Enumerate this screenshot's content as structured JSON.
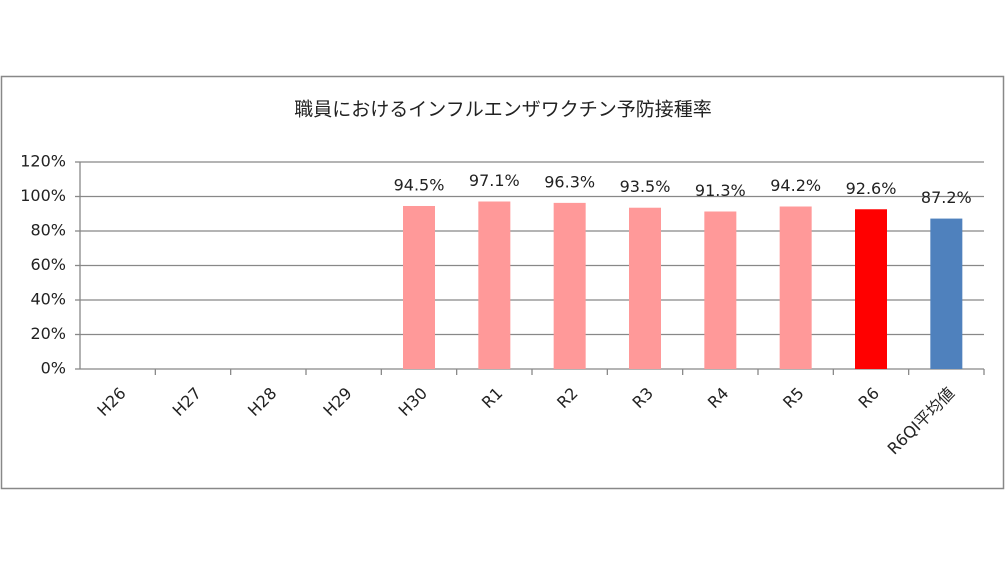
{
  "chart_data": {
    "type": "bar",
    "title": "職員におけるインフルエンザワクチン予防接種率",
    "categories": [
      "H26",
      "H27",
      "H28",
      "H29",
      "H30",
      "R1",
      "R2",
      "R3",
      "R4",
      "R5",
      "R6",
      "R6QI平均値"
    ],
    "values": [
      null,
      null,
      null,
      null,
      94.5,
      97.1,
      96.3,
      93.5,
      91.3,
      94.2,
      92.6,
      87.2
    ],
    "value_labels": [
      null,
      null,
      null,
      null,
      "94.5%",
      "97.1%",
      "96.3%",
      "93.5%",
      "91.3%",
      "94.2%",
      "92.6%",
      "87.2%"
    ],
    "colors": [
      null,
      null,
      null,
      null,
      "#ff9999",
      "#ff9999",
      "#ff9999",
      "#ff9999",
      "#ff9999",
      "#ff9999",
      "#ff0000",
      "#4f81bd"
    ],
    "ylim": [
      0,
      120
    ],
    "yticks": [
      {
        "value": 0,
        "label": "0%"
      },
      {
        "value": 20,
        "label": "20%"
      },
      {
        "value": 40,
        "label": "40%"
      },
      {
        "value": 60,
        "label": "60%"
      },
      {
        "value": 80,
        "label": "80%"
      },
      {
        "value": 100,
        "label": "100%"
      },
      {
        "value": 120,
        "label": "120%"
      }
    ],
    "grid": true
  }
}
